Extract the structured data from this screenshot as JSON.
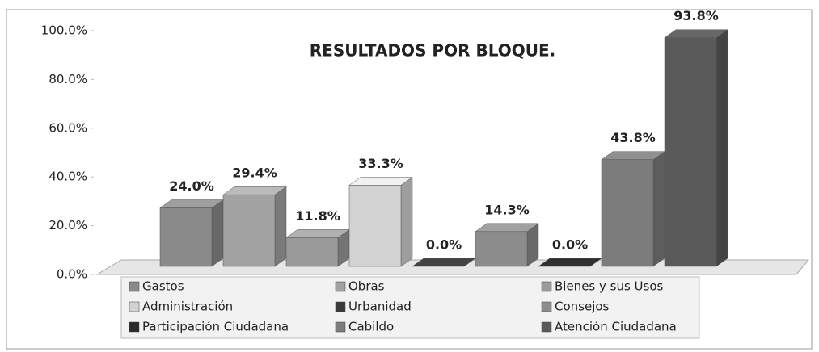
{
  "chart_data": {
    "type": "bar3d",
    "title": "RESULTADOS POR BLOQUE.",
    "categories": [
      "Gastos",
      "Obras",
      "Bienes y sus Usos",
      "Administración",
      "Urbanidad",
      "Consejos",
      "Participación Ciudadana",
      "Cabildo",
      "Atención Ciudadana"
    ],
    "values": [
      24.0,
      29.4,
      11.8,
      33.3,
      0.0,
      14.3,
      0.0,
      43.8,
      93.8
    ],
    "value_labels": [
      "24.0%",
      "29.4%",
      "11.8%",
      "33.3%",
      "0.0%",
      "14.3%",
      "0.0%",
      "43.8%",
      "93.8%"
    ],
    "colors": [
      "#8a8a8a",
      "#a2a2a2",
      "#9a9a9a",
      "#d2d2d2",
      "#3a3a3a",
      "#8c8c8c",
      "#2a2a2a",
      "#7c7c7c",
      "#5a5a5a"
    ],
    "ylim": [
      0,
      100
    ],
    "yticks": [
      {
        "value": 0,
        "label": "0.0%"
      },
      {
        "value": 20,
        "label": "20.0%"
      },
      {
        "value": 40,
        "label": "40.0%"
      },
      {
        "value": 60,
        "label": "60.0%"
      },
      {
        "value": 80,
        "label": "80.0%"
      },
      {
        "value": 100,
        "label": "100.0%"
      }
    ],
    "legend": "bottom"
  }
}
